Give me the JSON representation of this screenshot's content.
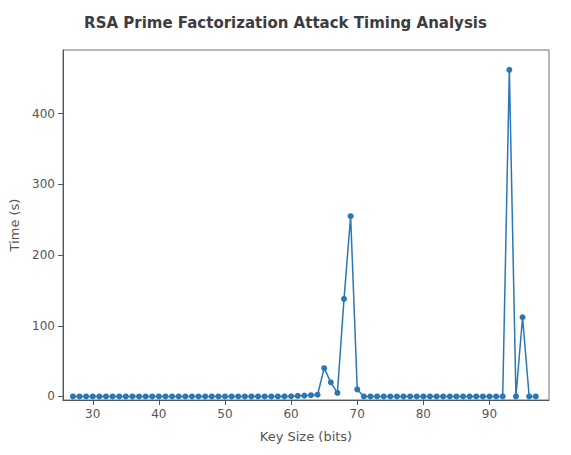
{
  "chart_data": {
    "type": "line",
    "title": "RSA Prime Factorization Attack Timing Analysis",
    "xlabel": "Key Size (bits)",
    "ylabel": "Time (s)",
    "color": "#2977b5",
    "marker": "circle",
    "grid": false,
    "x": [
      27,
      28,
      29,
      30,
      31,
      32,
      33,
      34,
      35,
      36,
      37,
      38,
      39,
      40,
      41,
      42,
      43,
      44,
      45,
      46,
      47,
      48,
      49,
      50,
      51,
      52,
      53,
      54,
      55,
      56,
      57,
      58,
      59,
      60,
      61,
      62,
      63,
      64,
      65,
      66,
      67,
      68,
      69,
      70,
      71,
      72,
      73,
      74,
      75,
      76,
      77,
      78,
      79,
      80,
      81,
      82,
      83,
      84,
      85,
      86,
      87,
      88,
      89,
      90,
      91,
      92,
      93,
      94,
      95,
      96,
      97
    ],
    "values": [
      0,
      0,
      0,
      0,
      0,
      0,
      0,
      0,
      0,
      0,
      0,
      0,
      0,
      0,
      0,
      0,
      0,
      0,
      0,
      0,
      0,
      0,
      0,
      0,
      0,
      0,
      0,
      0,
      0,
      0,
      0,
      0.05,
      0.1,
      0.3,
      0.8,
      1.2,
      1.8,
      2.5,
      40,
      20,
      5,
      138,
      255,
      10,
      0,
      0,
      0,
      0,
      0,
      0,
      0,
      0,
      0,
      0,
      0,
      0,
      0,
      0,
      0,
      0,
      0,
      0,
      0,
      0,
      0,
      0,
      462,
      0,
      112,
      0,
      0
    ],
    "xlim": [
      25.5,
      99
    ],
    "ylim": [
      -5,
      490
    ],
    "xticks": [
      30,
      40,
      50,
      60,
      70,
      80,
      90
    ],
    "yticks": [
      0,
      100,
      200,
      300,
      400
    ]
  }
}
